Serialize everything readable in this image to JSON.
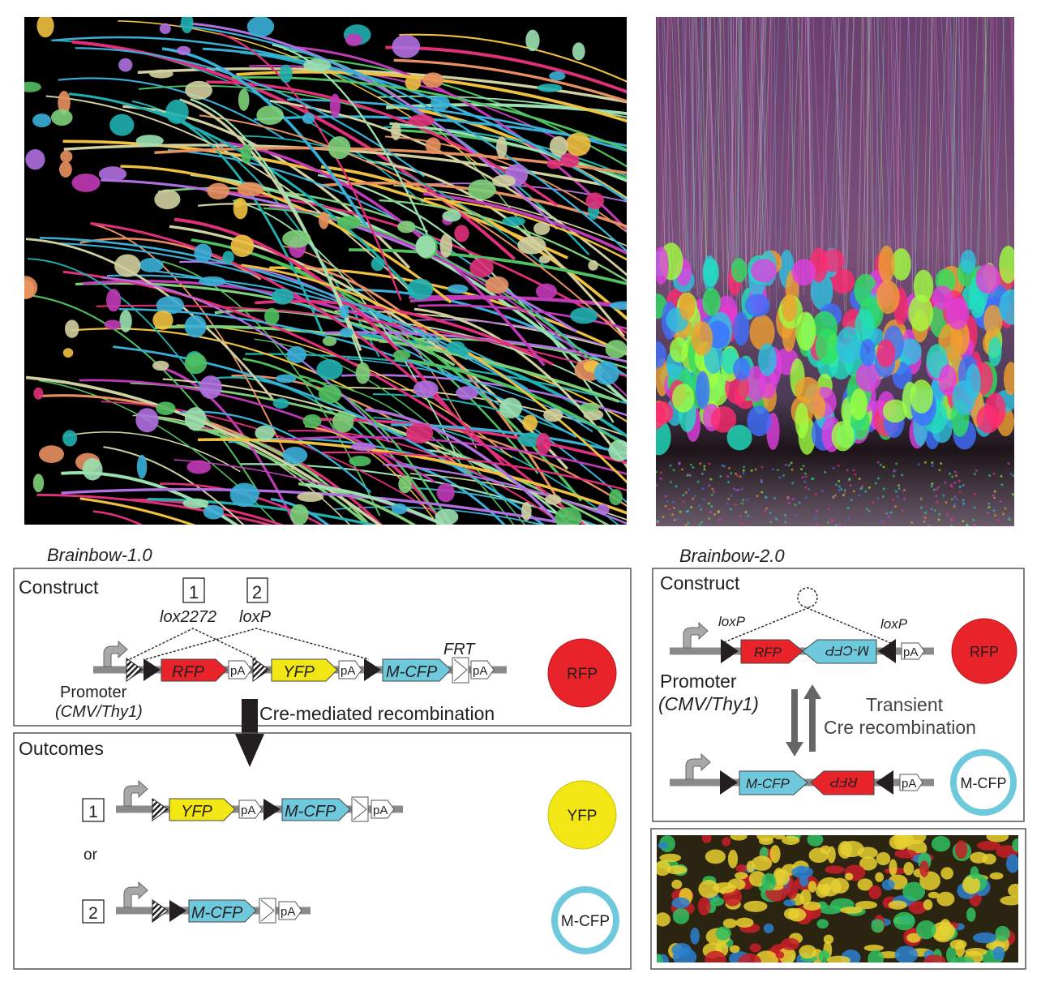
{
  "colors": {
    "rfp": "#e8232a",
    "yfp": "#f2e614",
    "cfp": "#6ec9dc",
    "dna": "#8a8a8a"
  },
  "brainbow1": {
    "title": "Brainbow-1.0",
    "construct_label": "Construct",
    "site1_number": "1",
    "site2_number": "2",
    "site1_name": "lox2272",
    "site2_name": "loxP",
    "frt_label": "FRT",
    "genes": {
      "rfp": "RFP",
      "yfp": "YFP",
      "mcfp": "M-CFP",
      "pa": "pA"
    },
    "promoter_label": "Promoter",
    "promoter_type": "(CMV/Thy1)",
    "recombination_label": "Cre-mediated recombination",
    "result_circle": "RFP",
    "outcomes_label": "Outcomes",
    "outcome1_number": "1",
    "outcome1_circle": "YFP",
    "or_label": "or",
    "outcome2_number": "2",
    "outcome2_circle": "M-CFP"
  },
  "brainbow2": {
    "title": "Brainbow-2.0",
    "construct_label": "Construct",
    "site_left": "loxP",
    "site_right": "loxP",
    "genes": {
      "rfp": "RFP",
      "mcfp": "M-CFP",
      "pa": "pA"
    },
    "promoter_label": "Promoter",
    "promoter_type": "(CMV/Thy1)",
    "transient_label": "Transient",
    "recombination_label": "Cre recombination",
    "state1_circle": "RFP",
    "state2_circle": "M-CFP"
  }
}
